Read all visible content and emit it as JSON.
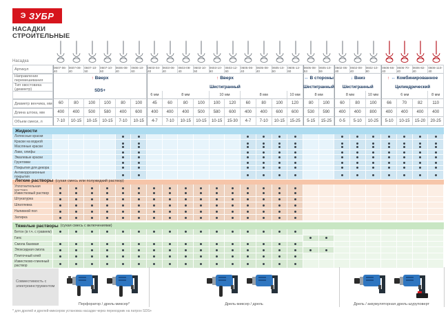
{
  "brand": {
    "logo_text": "ЗУБР",
    "logo_symbol": "Э",
    "logo_color": "#d6151d",
    "title_line1": "НАСАДКИ",
    "title_line2": "СТРОИТЕЛЬНЫЕ"
  },
  "row_labels": {
    "nozzle": "Насадка",
    "article": "Артикул",
    "direction": "Направление перемешивания",
    "shank": "Тип хвостовика (диаметр)",
    "diameter": "Диаметр венчика, мм",
    "length": "Длина штока, мм",
    "volume": "Объем смеси, л"
  },
  "groups": [
    {
      "direction": "Вверх",
      "arrows": [
        "up"
      ],
      "shank": "SDS+",
      "shank_merged": true,
      "sizes": [],
      "span": 6
    },
    {
      "direction": "Вверх",
      "arrows": [
        "up"
      ],
      "shank": "Шестигранный",
      "sizes": [
        {
          "label": "6 мм",
          "span": 1
        },
        {
          "label": "8 мм",
          "span": 3
        },
        {
          "label": "10 мм",
          "span": 2
        },
        {
          "label": "8 мм",
          "span": 3
        },
        {
          "label": "10 мм",
          "span": 1
        }
      ],
      "span": 10
    },
    {
      "direction": "В стороны",
      "arrows": [
        "lr"
      ],
      "shank": "Шестигранный",
      "sizes": [
        {
          "label": "8 мм",
          "span": 2
        }
      ],
      "span": 2
    },
    {
      "direction": "Вниз",
      "arrows": [
        "down"
      ],
      "shank": "Шестигранный",
      "sizes": [
        {
          "label": "8 мм",
          "span": 2
        },
        {
          "label": "10 мм",
          "span": 1
        }
      ],
      "span": 3
    },
    {
      "direction": "Комбинированное",
      "arrows": [
        "up",
        "lr"
      ],
      "shank": "Цилиндрический",
      "sizes": [
        {
          "label": "6 мм",
          "span": 3
        },
        {
          "label": "8 мм",
          "span": 1
        }
      ],
      "span": 4
    }
  ],
  "columns": [
    {
      "article": "0607-06-40",
      "diameter": "60",
      "length": "400",
      "volume": "7-10",
      "color": "gray"
    },
    {
      "article": "0607-08-40",
      "diameter": "80",
      "length": "400",
      "volume": "10-15",
      "color": "gray"
    },
    {
      "article": "0607-10-50",
      "diameter": "100",
      "length": "500",
      "volume": "10-15",
      "color": "gray"
    },
    {
      "article": "0607-10-60",
      "diameter": "100",
      "length": "580",
      "volume": "10-15",
      "color": "gray"
    },
    {
      "article": "0606-08-40",
      "diameter": "80",
      "length": "400",
      "volume": "7-10",
      "color": "gray"
    },
    {
      "article": "0606-10-60",
      "diameter": "100",
      "length": "600",
      "volume": "10-15",
      "color": "gray"
    },
    {
      "article": "0603-04-40",
      "diameter": "45",
      "length": "400",
      "volume": "4-7",
      "color": "gray"
    },
    {
      "article": "0603-06-40",
      "diameter": "60",
      "length": "400",
      "volume": "7-10",
      "color": "gray"
    },
    {
      "article": "0603-08-40",
      "diameter": "80",
      "length": "400",
      "volume": "10-15",
      "color": "gray"
    },
    {
      "article": "0603-10-50",
      "diameter": "100",
      "length": "500",
      "volume": "10-15",
      "color": "gray"
    },
    {
      "article": "0603-10-60",
      "diameter": "100",
      "length": "580",
      "volume": "10-15",
      "color": "gray"
    },
    {
      "article": "0603-12-60",
      "diameter": "120",
      "length": "600",
      "volume": "15-30",
      "color": "gray"
    },
    {
      "article": "0605-06-40",
      "diameter": "60",
      "length": "400",
      "volume": "4-7",
      "color": "gray"
    },
    {
      "article": "0605-08-40",
      "diameter": "80",
      "length": "400",
      "volume": "7-10",
      "color": "gray"
    },
    {
      "article": "0605-10-60",
      "diameter": "100",
      "length": "600",
      "volume": "10-15",
      "color": "gray"
    },
    {
      "article": "0605-12-60",
      "diameter": "120",
      "length": "600",
      "volume": "15-25",
      "color": "gray"
    },
    {
      "article": "0605-08-53",
      "diameter": "80",
      "length": "530",
      "volume": "5-15",
      "color": "gray"
    },
    {
      "article": "0605-10-59",
      "diameter": "100",
      "length": "590",
      "volume": "15-25",
      "color": "gray"
    },
    {
      "article": "0602-06-40",
      "diameter": "60",
      "length": "400",
      "volume": "0-5",
      "color": "gray"
    },
    {
      "article": "0602-08-40",
      "diameter": "80",
      "length": "400",
      "volume": "5-10",
      "color": "gray"
    },
    {
      "article": "0602-10-80",
      "diameter": "100",
      "length": "800",
      "volume": "10-25",
      "color": "gray"
    },
    {
      "article": "0606-66-40",
      "diameter": "66",
      "length": "400",
      "volume": "5-10",
      "color": "red"
    },
    {
      "article": "0606-70-40",
      "diameter": "70",
      "length": "400",
      "volume": "10-15",
      "color": "red"
    },
    {
      "article": "0606-82-40",
      "diameter": "82",
      "length": "400",
      "volume": "15-20",
      "color": "red"
    },
    {
      "article": "0608-110-40",
      "diameter": "110",
      "length": "400",
      "volume": "20-25",
      "color": "red"
    }
  ],
  "sections": [
    {
      "title": "Жидкости",
      "subtitle": "",
      "theme": "blue",
      "default_marks": [
        5,
        6,
        13,
        14,
        15,
        16,
        19,
        20,
        21,
        22,
        23,
        24,
        25
      ],
      "rows": [
        {
          "label": "Латексные краски"
        },
        {
          "label": "Краски на водной основе"
        },
        {
          "label": "Масляные краски"
        },
        {
          "label": "Лаки, олифы"
        },
        {
          "label": "Эмалевые краски"
        },
        {
          "label": "Грунтовки"
        },
        {
          "label": "Покрытия для декора"
        },
        {
          "label": "Антикоррозионные покрытия"
        }
      ]
    },
    {
      "title": "Легкие растворы",
      "subtitle": "(сухая смесь или полужидкий раствор)",
      "theme": "orange",
      "default_marks": [
        1,
        2,
        3,
        4,
        5,
        6,
        7,
        8,
        9,
        10,
        11,
        12,
        13,
        14,
        15,
        16
      ],
      "rows": [
        {
          "label": "Уплотнительная мастика"
        },
        {
          "label": "Известковый раствор"
        },
        {
          "label": "Штукатурка"
        },
        {
          "label": "Шпатлевка"
        },
        {
          "label": "Наливной пол"
        },
        {
          "label": "Затирка"
        }
      ]
    },
    {
      "title": "Тяжелые растворы",
      "subtitle": "(сухая смесь с включениями)",
      "theme": "green",
      "default_marks": [
        1,
        2,
        3,
        4,
        5,
        6,
        7,
        8,
        9,
        10,
        11,
        12,
        13,
        14,
        15,
        16
      ],
      "rows": [
        {
          "label": "Бетон (в т.ч. с гравием)"
        },
        {
          "label": "Гипс",
          "marks": [
            17,
            18
          ]
        },
        {
          "label": "Смола базовая"
        },
        {
          "label": "Эпоксидная смола",
          "marks": [
            1,
            2,
            3,
            4,
            5,
            6,
            7,
            8,
            9,
            10,
            11,
            12,
            13,
            14,
            15,
            16,
            17,
            18
          ]
        },
        {
          "label": "Плиточный клей"
        },
        {
          "label": "Известково-глиняный раствор"
        }
      ]
    }
  ],
  "compat": {
    "label": "Совместимость с электроинструментом",
    "tools": [
      {
        "caption": "Перфоратор / дрель-миксер*"
      },
      {
        "caption": "Дрель-миксер / дрель"
      },
      {
        "caption": "Дрель / аккумуляторная дрель-шуруповерт"
      }
    ]
  },
  "footnote": "* для дрелей и дрелей-миксеров установка насадки через переходник на патрон SDS+"
}
